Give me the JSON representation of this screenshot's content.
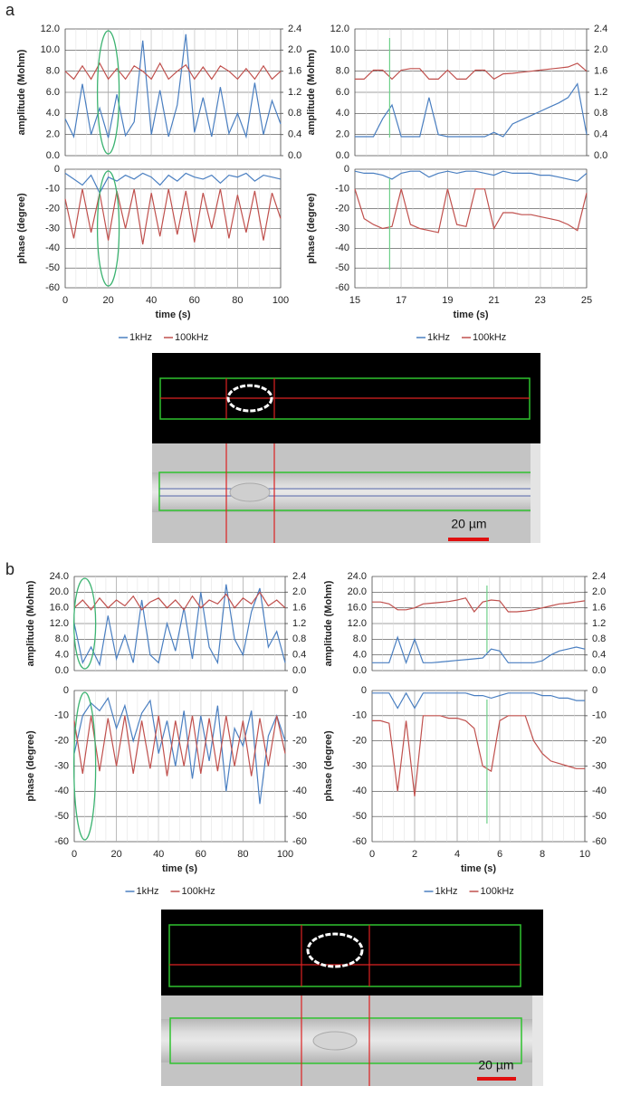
{
  "panel_labels": [
    "a",
    "b"
  ],
  "scale_bar_label": "20 µm",
  "chart_data": [
    {
      "type": "line",
      "ylabel": "amplitude (Mohm)",
      "x": [
        0,
        4,
        8,
        12,
        16,
        20,
        24,
        28,
        32,
        36,
        40,
        44,
        48,
        52,
        56,
        60,
        64,
        68,
        72,
        76,
        80,
        84,
        88,
        92,
        96,
        100
      ],
      "xlim": [
        0,
        100
      ],
      "xticks": [
        0,
        20,
        40,
        60,
        80,
        100
      ],
      "ylim": [
        0,
        12
      ],
      "yticks": [
        {
          "value": 0,
          "label": "0.0"
        },
        {
          "value": 2,
          "label": "2.0"
        },
        {
          "value": 4,
          "label": "4.0"
        },
        {
          "value": 6,
          "label": "6.0"
        },
        {
          "value": 8,
          "label": "8.0"
        },
        {
          "value": 10,
          "label": "10.0"
        },
        {
          "value": 12,
          "label": "12.0"
        }
      ],
      "y2lim": [
        0,
        2.4
      ],
      "y2ticks": [
        {
          "value": 0,
          "label": "0.0"
        },
        0.4,
        0.8,
        1.2,
        1.6,
        {
          "value": 2,
          "label": "2.0"
        },
        2.4
      ],
      "grid": true,
      "highlight_x": 20,
      "series": [
        {
          "color": "#4a7fc1",
          "values": [
            3.5,
            1.8,
            6.8,
            2.0,
            4.5,
            1.7,
            5.8,
            1.9,
            3.2,
            10.9,
            2.0,
            6.2,
            1.8,
            4.8,
            11.5,
            2.2,
            5.5,
            1.8,
            6.5,
            2.1,
            4.0,
            1.8,
            6.9,
            2.0,
            5.2,
            3.0
          ]
        },
        {
          "color": "#c0504d",
          "axis": "y2",
          "values": [
            1.6,
            1.45,
            1.7,
            1.45,
            1.75,
            1.45,
            1.65,
            1.45,
            1.7,
            1.6,
            1.45,
            1.75,
            1.45,
            1.6,
            1.72,
            1.45,
            1.68,
            1.45,
            1.7,
            1.6,
            1.45,
            1.65,
            1.45,
            1.7,
            1.45,
            1.6
          ]
        }
      ]
    },
    {
      "type": "line",
      "ylabel": "phase (degree)",
      "xlabel": "time (s)",
      "x": [
        0,
        4,
        8,
        12,
        16,
        20,
        24,
        28,
        32,
        36,
        40,
        44,
        48,
        52,
        56,
        60,
        64,
        68,
        72,
        76,
        80,
        84,
        88,
        92,
        96,
        100
      ],
      "xlim": [
        0,
        100
      ],
      "xticks": [
        0,
        20,
        40,
        60,
        80,
        100
      ],
      "ylim": [
        -60,
        0
      ],
      "yticks": [
        -60,
        -50,
        -40,
        -30,
        -20,
        -10,
        0
      ],
      "grid": true,
      "highlight_x": 20,
      "legend": "bottom",
      "series": [
        {
          "name": "1kHz",
          "color": "#4a7fc1",
          "values": [
            -2,
            -5,
            -8,
            -3,
            -12,
            -4,
            -6,
            -3,
            -5,
            -2,
            -4,
            -8,
            -3,
            -6,
            -2,
            -4,
            -5,
            -3,
            -7,
            -3,
            -4,
            -2,
            -6,
            -3,
            -4,
            -5
          ]
        },
        {
          "name": "100kHz",
          "color": "#c0504d",
          "values": [
            -15,
            -35,
            -10,
            -32,
            -12,
            -36,
            -11,
            -30,
            -10,
            -38,
            -12,
            -34,
            -10,
            -33,
            -11,
            -37,
            -12,
            -30,
            -10,
            -35,
            -13,
            -32,
            -11,
            -36,
            -12,
            -25
          ]
        }
      ]
    },
    {
      "type": "line",
      "ylabel": "amplitude (Mohm)",
      "x": [
        15,
        15.4,
        15.8,
        16.2,
        16.6,
        17,
        17.4,
        17.8,
        18.2,
        18.6,
        19,
        19.4,
        19.8,
        20.2,
        20.6,
        21,
        21.4,
        21.8,
        22.2,
        22.6,
        23,
        23.4,
        23.8,
        24.2,
        24.6,
        25
      ],
      "xlim": [
        15,
        25
      ],
      "xticks": [
        15,
        17,
        19,
        21,
        23,
        25
      ],
      "ylim": [
        0,
        12
      ],
      "yticks": [
        {
          "value": 0,
          "label": "0.0"
        },
        {
          "value": 2,
          "label": "2.0"
        },
        {
          "value": 4,
          "label": "4.0"
        },
        {
          "value": 6,
          "label": "6.0"
        },
        {
          "value": 8,
          "label": "8.0"
        },
        {
          "value": 10,
          "label": "10.0"
        },
        {
          "value": 12,
          "label": "12.0"
        }
      ],
      "y2lim": [
        0,
        2.4
      ],
      "y2ticks": [
        {
          "value": 0,
          "label": "0.0"
        },
        0.4,
        0.8,
        1.2,
        1.6,
        {
          "value": 2,
          "label": "2.0"
        },
        2.4
      ],
      "grid": true,
      "marker_x": 16.5,
      "series": [
        {
          "color": "#4a7fc1",
          "values": [
            1.8,
            1.8,
            1.8,
            3.5,
            4.8,
            1.8,
            1.8,
            1.8,
            5.5,
            2.0,
            1.8,
            1.8,
            1.8,
            1.8,
            1.8,
            2.2,
            1.8,
            3.0,
            3.4,
            3.8,
            4.2,
            4.6,
            5.0,
            5.5,
            6.8,
            2.0
          ]
        },
        {
          "color": "#c0504d",
          "axis": "y2",
          "values": [
            1.45,
            1.45,
            1.62,
            1.62,
            1.45,
            1.62,
            1.65,
            1.65,
            1.45,
            1.45,
            1.62,
            1.45,
            1.45,
            1.62,
            1.62,
            1.45,
            1.55,
            1.56,
            1.58,
            1.6,
            1.62,
            1.64,
            1.66,
            1.68,
            1.75,
            1.6
          ]
        }
      ]
    },
    {
      "type": "line",
      "ylabel": "phase (degree)",
      "xlabel": "time (s)",
      "x": [
        15,
        15.4,
        15.8,
        16.2,
        16.6,
        17,
        17.4,
        17.8,
        18.2,
        18.6,
        19,
        19.4,
        19.8,
        20.2,
        20.6,
        21,
        21.4,
        21.8,
        22.2,
        22.6,
        23,
        23.4,
        23.8,
        24.2,
        24.6,
        25
      ],
      "xlim": [
        15,
        25
      ],
      "xticks": [
        15,
        17,
        19,
        21,
        23,
        25
      ],
      "ylim": [
        -60,
        0
      ],
      "yticks": [
        -60,
        -50,
        -40,
        -30,
        -20,
        -10,
        0
      ],
      "grid": true,
      "marker_x": 16.5,
      "legend": "bottom",
      "series": [
        {
          "name": "1kHz",
          "color": "#4a7fc1",
          "values": [
            -1,
            -2,
            -2,
            -3,
            -5,
            -2,
            -1,
            -1,
            -4,
            -2,
            -1,
            -2,
            -1,
            -1,
            -2,
            -3,
            -1,
            -2,
            -2,
            -2,
            -3,
            -3,
            -4,
            -5,
            -6,
            -2
          ]
        },
        {
          "name": "100kHz",
          "color": "#c0504d",
          "values": [
            -10,
            -25,
            -28,
            -30,
            -29,
            -10,
            -28,
            -30,
            -31,
            -32,
            -10,
            -28,
            -29,
            -10,
            -10,
            -30,
            -22,
            -22,
            -23,
            -23,
            -24,
            -25,
            -26,
            -28,
            -31,
            -12
          ]
        }
      ]
    },
    {
      "type": "line",
      "ylabel": "amplitude (Mohm)",
      "x": [
        0,
        4,
        8,
        12,
        16,
        20,
        24,
        28,
        32,
        36,
        40,
        44,
        48,
        52,
        56,
        60,
        64,
        68,
        72,
        76,
        80,
        84,
        88,
        92,
        96,
        100
      ],
      "xlim": [
        0,
        100
      ],
      "xticks": [
        0,
        20,
        40,
        60,
        80,
        100
      ],
      "ylim": [
        0,
        24
      ],
      "yticks": [
        {
          "value": 0,
          "label": "0.0"
        },
        {
          "value": 4,
          "label": "4.0"
        },
        {
          "value": 8,
          "label": "8.0"
        },
        {
          "value": 12,
          "label": "12.0"
        },
        {
          "value": 16,
          "label": "16.0"
        },
        {
          "value": 20,
          "label": "20.0"
        },
        {
          "value": 24,
          "label": "24.0"
        }
      ],
      "y2lim": [
        0,
        2.4
      ],
      "y2ticks": [
        {
          "value": 0,
          "label": "0.0"
        },
        0.4,
        0.8,
        1.2,
        1.6,
        {
          "value": 2,
          "label": "2.0"
        },
        2.4
      ],
      "grid": true,
      "highlight_x": 5,
      "series": [
        {
          "color": "#4a7fc1",
          "values": [
            12,
            2,
            6,
            1.5,
            14,
            3,
            9,
            2,
            18,
            4,
            2,
            12,
            5,
            16,
            3,
            20,
            6,
            2,
            22,
            8,
            4,
            15,
            21,
            6,
            10,
            2
          ]
        },
        {
          "color": "#c0504d",
          "axis": "y2",
          "values": [
            1.6,
            1.8,
            1.55,
            1.85,
            1.6,
            1.8,
            1.65,
            1.9,
            1.55,
            1.75,
            1.85,
            1.6,
            1.8,
            1.55,
            1.9,
            1.6,
            1.8,
            1.7,
            1.95,
            1.6,
            1.85,
            1.7,
            2.0,
            1.65,
            1.8,
            1.6
          ]
        }
      ]
    },
    {
      "type": "line",
      "ylabel": "phase (degree)",
      "xlabel": "time (s)",
      "x": [
        0,
        4,
        8,
        12,
        16,
        20,
        24,
        28,
        32,
        36,
        40,
        44,
        48,
        52,
        56,
        60,
        64,
        68,
        72,
        76,
        80,
        84,
        88,
        92,
        96,
        100
      ],
      "xlim": [
        0,
        100
      ],
      "xticks": [
        0,
        20,
        40,
        60,
        80,
        100
      ],
      "ylim": [
        -60,
        0
      ],
      "yticks": [
        -60,
        -50,
        -40,
        -30,
        -20,
        -10,
        0
      ],
      "y2lim": [
        -60,
        0
      ],
      "y2ticks": [
        -60,
        -50,
        -40,
        -30,
        -20,
        -10,
        0
      ],
      "grid": true,
      "highlight_x": 5,
      "legend": "bottom",
      "series": [
        {
          "name": "1kHz",
          "color": "#4a7fc1",
          "values": [
            -25,
            -10,
            -5,
            -8,
            -3,
            -15,
            -6,
            -20,
            -9,
            -4,
            -25,
            -12,
            -30,
            -8,
            -35,
            -10,
            -28,
            -6,
            -40,
            -15,
            -22,
            -8,
            -45,
            -18,
            -10,
            -20
          ]
        },
        {
          "name": "100kHz",
          "color": "#c0504d",
          "values": [
            -12,
            -33,
            -10,
            -32,
            -11,
            -30,
            -10,
            -33,
            -12,
            -31,
            -10,
            -34,
            -12,
            -30,
            -10,
            -33,
            -11,
            -32,
            -10,
            -30,
            -12,
            -34,
            -11,
            -30,
            -10,
            -25
          ]
        }
      ]
    },
    {
      "type": "line",
      "ylabel": "amplitude (Mohm)",
      "x": [
        0,
        0.4,
        0.8,
        1.2,
        1.6,
        2,
        2.4,
        2.8,
        3.2,
        3.6,
        4,
        4.4,
        4.8,
        5.2,
        5.6,
        6,
        6.4,
        6.8,
        7.2,
        7.6,
        8,
        8.4,
        8.8,
        9.2,
        9.6,
        10
      ],
      "xlim": [
        0,
        10
      ],
      "xticks": [
        0,
        2,
        4,
        6,
        8,
        10
      ],
      "ylim": [
        0,
        24
      ],
      "yticks": [
        {
          "value": 0,
          "label": "0.0"
        },
        {
          "value": 4,
          "label": "4.0"
        },
        {
          "value": 8,
          "label": "8.0"
        },
        {
          "value": 12,
          "label": "12.0"
        },
        {
          "value": 16,
          "label": "16.0"
        },
        {
          "value": 20,
          "label": "20.0"
        },
        {
          "value": 24,
          "label": "24.0"
        }
      ],
      "y2lim": [
        0,
        2.4
      ],
      "y2ticks": [
        {
          "value": 0,
          "label": "0.0"
        },
        0.4,
        0.8,
        1.2,
        1.6,
        {
          "value": 2,
          "label": "2.0"
        },
        2.4
      ],
      "grid": true,
      "marker_x": 5.4,
      "series": [
        {
          "color": "#4a7fc1",
          "values": [
            2,
            2,
            2,
            8.5,
            2,
            8,
            2,
            2,
            2.2,
            2.4,
            2.6,
            2.8,
            3.0,
            3.2,
            5.5,
            5.0,
            2,
            2,
            2,
            2,
            2.5,
            4,
            5,
            5.5,
            6,
            5.5
          ]
        },
        {
          "color": "#c0504d",
          "axis": "y2",
          "values": [
            1.75,
            1.75,
            1.7,
            1.55,
            1.55,
            1.6,
            1.7,
            1.72,
            1.74,
            1.76,
            1.8,
            1.85,
            1.5,
            1.75,
            1.8,
            1.78,
            1.5,
            1.5,
            1.52,
            1.55,
            1.6,
            1.65,
            1.7,
            1.72,
            1.75,
            1.78
          ]
        }
      ]
    },
    {
      "type": "line",
      "ylabel": "phase (degree)",
      "xlabel": "time (s)",
      "x": [
        0,
        0.4,
        0.8,
        1.2,
        1.6,
        2,
        2.4,
        2.8,
        3.2,
        3.6,
        4,
        4.4,
        4.8,
        5.2,
        5.6,
        6,
        6.4,
        6.8,
        7.2,
        7.6,
        8,
        8.4,
        8.8,
        9.2,
        9.6,
        10
      ],
      "xlim": [
        0,
        10
      ],
      "xticks": [
        0,
        2,
        4,
        6,
        8,
        10
      ],
      "ylim": [
        -60,
        0
      ],
      "yticks": [
        -60,
        -50,
        -40,
        -30,
        -20,
        -10,
        0
      ],
      "y2lim": [
        -60,
        0
      ],
      "y2ticks": [
        -60,
        -50,
        -40,
        -30,
        -20,
        -10,
        0
      ],
      "grid": true,
      "marker_x": 5.4,
      "legend": "bottom",
      "series": [
        {
          "name": "1kHz",
          "color": "#4a7fc1",
          "values": [
            -1,
            -1,
            -1,
            -7,
            -1,
            -7,
            -1,
            -1,
            -1,
            -1,
            -1,
            -1,
            -2,
            -2,
            -3,
            -2,
            -1,
            -1,
            -1,
            -1,
            -2,
            -2,
            -3,
            -3,
            -4,
            -4
          ]
        },
        {
          "name": "100kHz",
          "color": "#c0504d",
          "values": [
            -12,
            -12,
            -13,
            -40,
            -12,
            -42,
            -10,
            -10,
            -10,
            -11,
            -11,
            -12,
            -15,
            -30,
            -32,
            -12,
            -10,
            -10,
            -10,
            -20,
            -25,
            -28,
            -29,
            -30,
            -31,
            -31
          ]
        }
      ]
    }
  ]
}
